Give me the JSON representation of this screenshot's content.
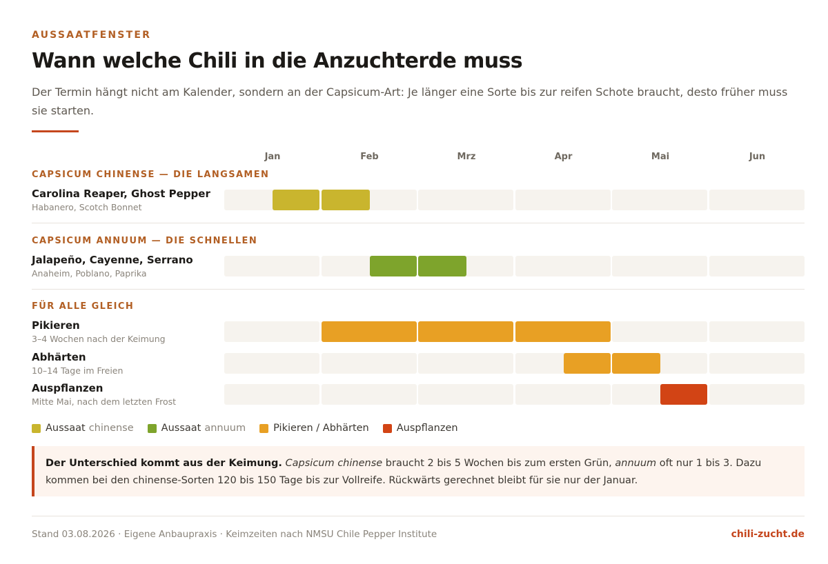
{
  "eyebrow": "AUSSAATFENSTER",
  "title": "Wann welche Chili in die Anzuchterde muss",
  "subtitle": "Der Termin hängt nicht am Kalender, sondern an der Capsicum-Art: Je länger eine Sorte bis zur reifen Schote braucht, desto früher muss sie starten.",
  "colors": {
    "aussaat_chinense": "#c9b52e",
    "aussaat_annuum": "#7ea42c",
    "pikieren_abhaerten": "#e8a024",
    "auspflanzen": "#d24415",
    "accent": "#c5461d",
    "track": "#f6f3ee"
  },
  "chart_data": {
    "type": "gantt",
    "months": [
      "Jan",
      "Feb",
      "Mrz",
      "Apr",
      "Mai",
      "Jun"
    ],
    "groups": [
      {
        "label": "CAPSICUM CHINENSE — DIE LANGSAMEN",
        "rows": [
          {
            "name": "Carolina Reaper, Ghost Pepper",
            "sub": "Habanero, Scotch Bonnet",
            "category": "aussaat_chinense",
            "start": 0.5,
            "end": 1.5
          }
        ]
      },
      {
        "label": "CAPSICUM ANNUUM — DIE SCHNELLEN",
        "rows": [
          {
            "name": "Jalapeño, Cayenne, Serrano",
            "sub": "Anaheim, Poblano, Paprika",
            "category": "aussaat_annuum",
            "start": 1.5,
            "end": 2.5
          }
        ]
      },
      {
        "label": "FÜR ALLE GLEICH",
        "rows": [
          {
            "name": "Pikieren",
            "sub": "3–4 Wochen nach der Keimung",
            "category": "pikieren_abhaerten",
            "start": 1.0,
            "end": 4.0
          },
          {
            "name": "Abhärten",
            "sub": "10–14 Tage im Freien",
            "category": "pikieren_abhaerten",
            "start": 3.5,
            "end": 4.5
          },
          {
            "name": "Auspflanzen",
            "sub": "Mitte Mai, nach dem letzten Frost",
            "category": "auspflanzen",
            "start": 4.5,
            "end": 5.0
          }
        ]
      }
    ],
    "legend": [
      {
        "label": "Aussaat",
        "muted": "chinense",
        "category": "aussaat_chinense"
      },
      {
        "label": "Aussaat",
        "muted": "annuum",
        "category": "aussaat_annuum"
      },
      {
        "label": "Pikieren / Abhärten",
        "muted": "",
        "category": "pikieren_abhaerten"
      },
      {
        "label": "Auspflanzen",
        "muted": "",
        "category": "auspflanzen"
      }
    ]
  },
  "note": {
    "lead": "Der Unterschied kommt aus der Keimung.",
    "species1": "Capsicum chinense",
    "text1": " braucht 2 bis 5 Wochen bis zum ersten Grün, ",
    "species2": "annuum",
    "text2": " oft nur 1 bis 3. Dazu kommen bei den chinense-Sorten 120 bis 150 Tage bis zur Vollreife. Rückwärts gerechnet bleibt für sie nur der Januar."
  },
  "footer": {
    "source": "Stand 03.08.2026 · Eigene Anbaupraxis · Keimzeiten nach NMSU Chile Pepper Institute",
    "brand": "chili-zucht.de"
  }
}
